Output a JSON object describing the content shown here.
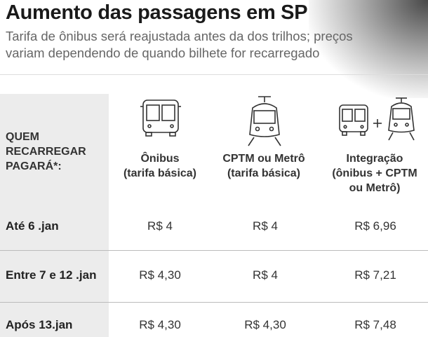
{
  "header": {
    "title": "Aumento das passagens em SP",
    "subtitle": [
      "Tarifa de ônibus será reajustada antes da dos trilhos; preços",
      "variam dependendo de quando bilhete for recarregado"
    ]
  },
  "table": {
    "columns": [
      [
        "QUEM",
        "RECARREGAR",
        "PAGARÁ*:"
      ],
      [
        "Ônibus",
        "(tarifa básica)"
      ],
      [
        "CPTM ou Metrô",
        "(tarifa básica)"
      ],
      [
        "Integração",
        "(ônibus + CPTM",
        "ou Metrô)"
      ]
    ],
    "rows": [
      [
        "Até 6 .jan",
        "R$ 4",
        "R$ 4",
        "R$ 6,96"
      ],
      [
        "Entre 7 e 12 .jan",
        "R$ 4,30",
        "R$ 4",
        "R$ 7,21"
      ],
      [
        "Após 13.jan",
        "R$ 4,30",
        "R$ 4,30",
        "R$ 7,48"
      ]
    ]
  }
}
